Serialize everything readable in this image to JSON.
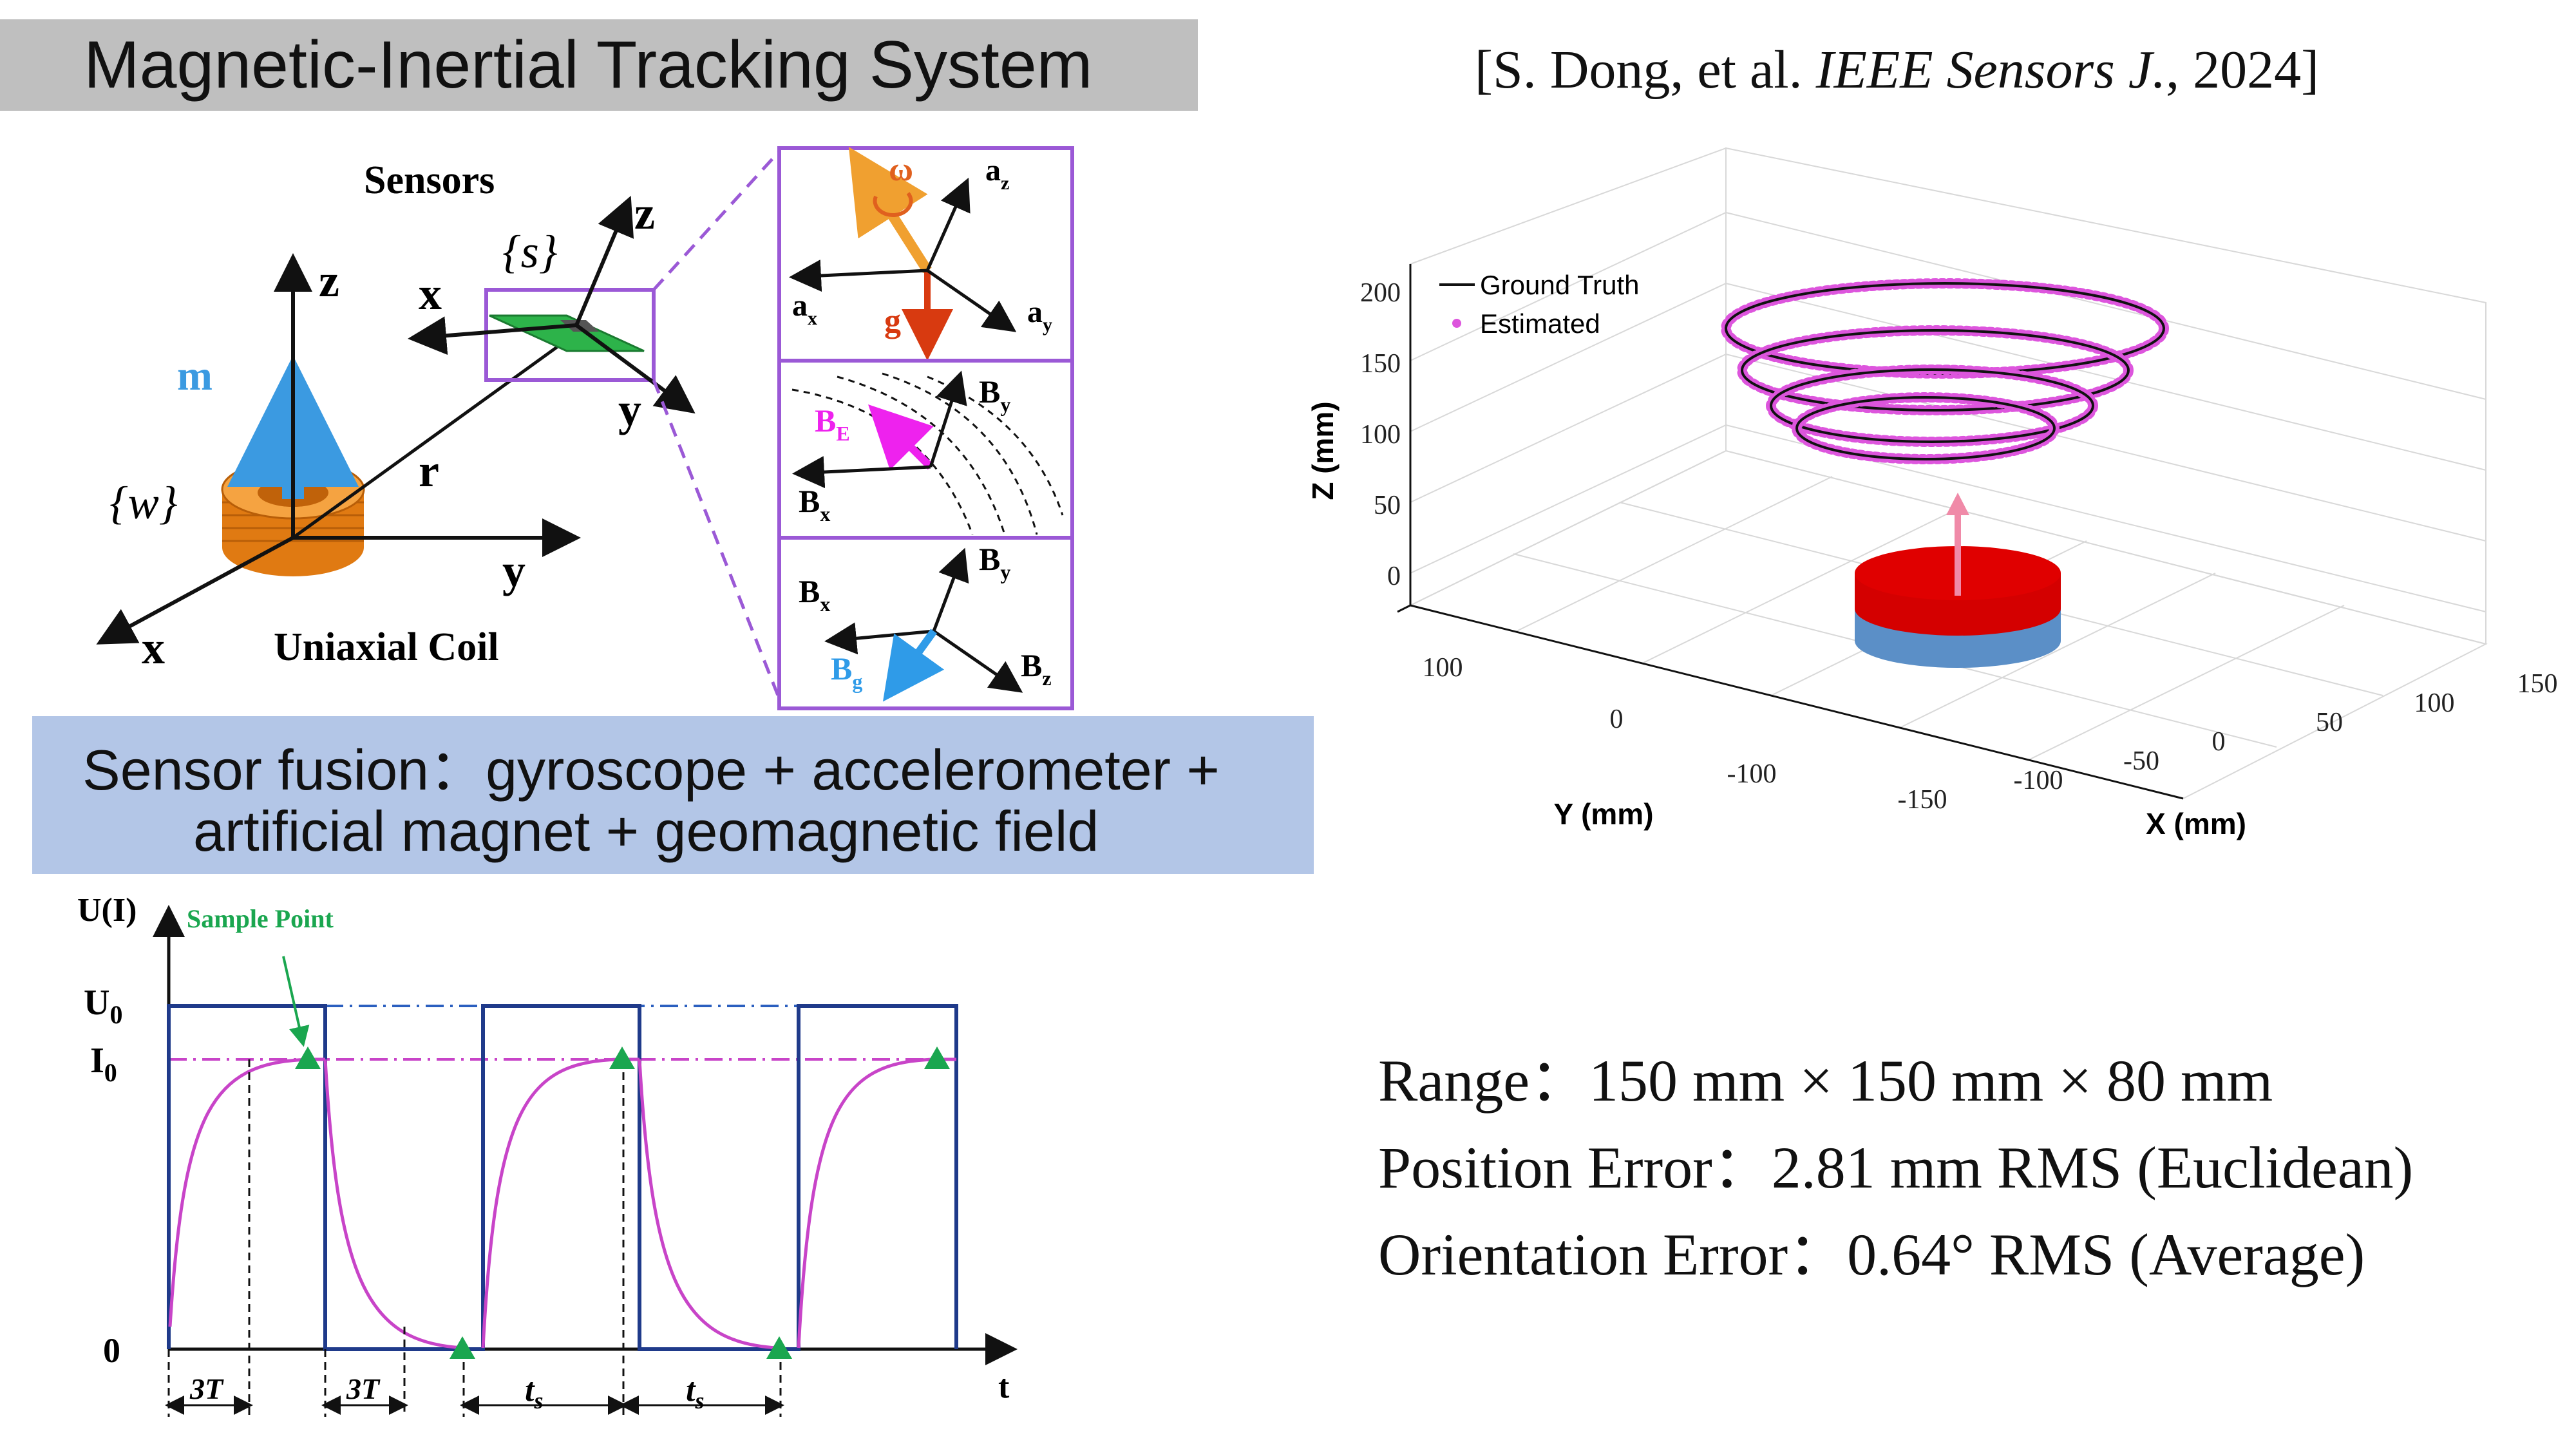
{
  "title": "Magnetic-Inertial Tracking System",
  "citation": {
    "prefix": "[S. Dong, et al. ",
    "journal": "IEEE Sensors J.",
    "suffix": ", 2024]"
  },
  "setup_diagram": {
    "sensors_label": "Sensors",
    "sensor_frame": "{s}",
    "world_frame": "{w}",
    "coil_label": "Uniaxial Coil",
    "moment_label": "m",
    "distance_label": "r",
    "axis_x": "x",
    "axis_y": "y",
    "axis_z": "z"
  },
  "inset_gyro_acc": {
    "omega": "ω",
    "g": "g",
    "az": "a",
    "az_sub": "z",
    "ax": "a",
    "ax_sub": "x",
    "ay": "a",
    "ay_sub": "y"
  },
  "inset_field": {
    "BE": "B",
    "BE_sub": "E",
    "By": "B",
    "By_sub": "y",
    "Bx": "B",
    "Bx_sub": "x"
  },
  "inset_geo": {
    "Bx": "B",
    "Bx_sub": "x",
    "By": "B",
    "By_sub": "y",
    "Bz": "B",
    "Bz_sub": "z",
    "Bg": "B",
    "Bg_sub": "g"
  },
  "fusion": {
    "line1": "Sensor fusion：gyroscope + accelerometer +",
    "line2": "artificial magnet + geomagnetic field"
  },
  "waveform": {
    "y_axis": "U(I)",
    "x_axis": "t",
    "U0": "U",
    "U0_sub": "0",
    "I0": "I",
    "I0_sub": "0",
    "zero": "0",
    "sample_point": "Sample Point",
    "interval_3T": "3T",
    "interval_ts": "t",
    "interval_ts_sub": "s"
  },
  "chart_data": {
    "type": "scatter",
    "legend": [
      "Ground Truth",
      "Estimated"
    ],
    "legend_position": "top-left",
    "xlabel": "X (mm)",
    "ylabel": "Y (mm)",
    "zlabel": "Z (mm)",
    "x_ticks": [
      "-150",
      "-100",
      "-50",
      "0",
      "50",
      "100",
      "150"
    ],
    "y_ticks": [
      "-100",
      "0",
      "100"
    ],
    "z_ticks": [
      "0",
      "50",
      "100",
      "150",
      "200"
    ],
    "xlim": [
      -150,
      150
    ],
    "ylim": [
      -150,
      150
    ],
    "zlim": [
      0,
      200
    ],
    "grid": true,
    "trajectory": "descending spiral",
    "series": [
      {
        "name": "Ground Truth",
        "color": "#000000"
      },
      {
        "name": "Estimated",
        "color": "#dd55dd"
      }
    ]
  },
  "metrics": {
    "range": "Range：150 mm  × 150 mm × 80 mm",
    "position": "Position Error：2.81 mm RMS (Euclidean)",
    "orientation": "Orientation Error：0.64° RMS (Average)"
  },
  "colors": {
    "title_bg": "#bfbfbf",
    "fusion_bg": "#b3c6e7",
    "inset_border": "#9b59d6",
    "magnet_red": "#dd0000",
    "magnet_blue": "#5b8fc7",
    "estimated": "#dd55dd",
    "square_wave": "#1f3a8a",
    "exp_curve": "#c844c8",
    "sample_marker": "#1aa64f",
    "coil": "#f08c1e",
    "moment_arrow": "#3b9ae1"
  }
}
